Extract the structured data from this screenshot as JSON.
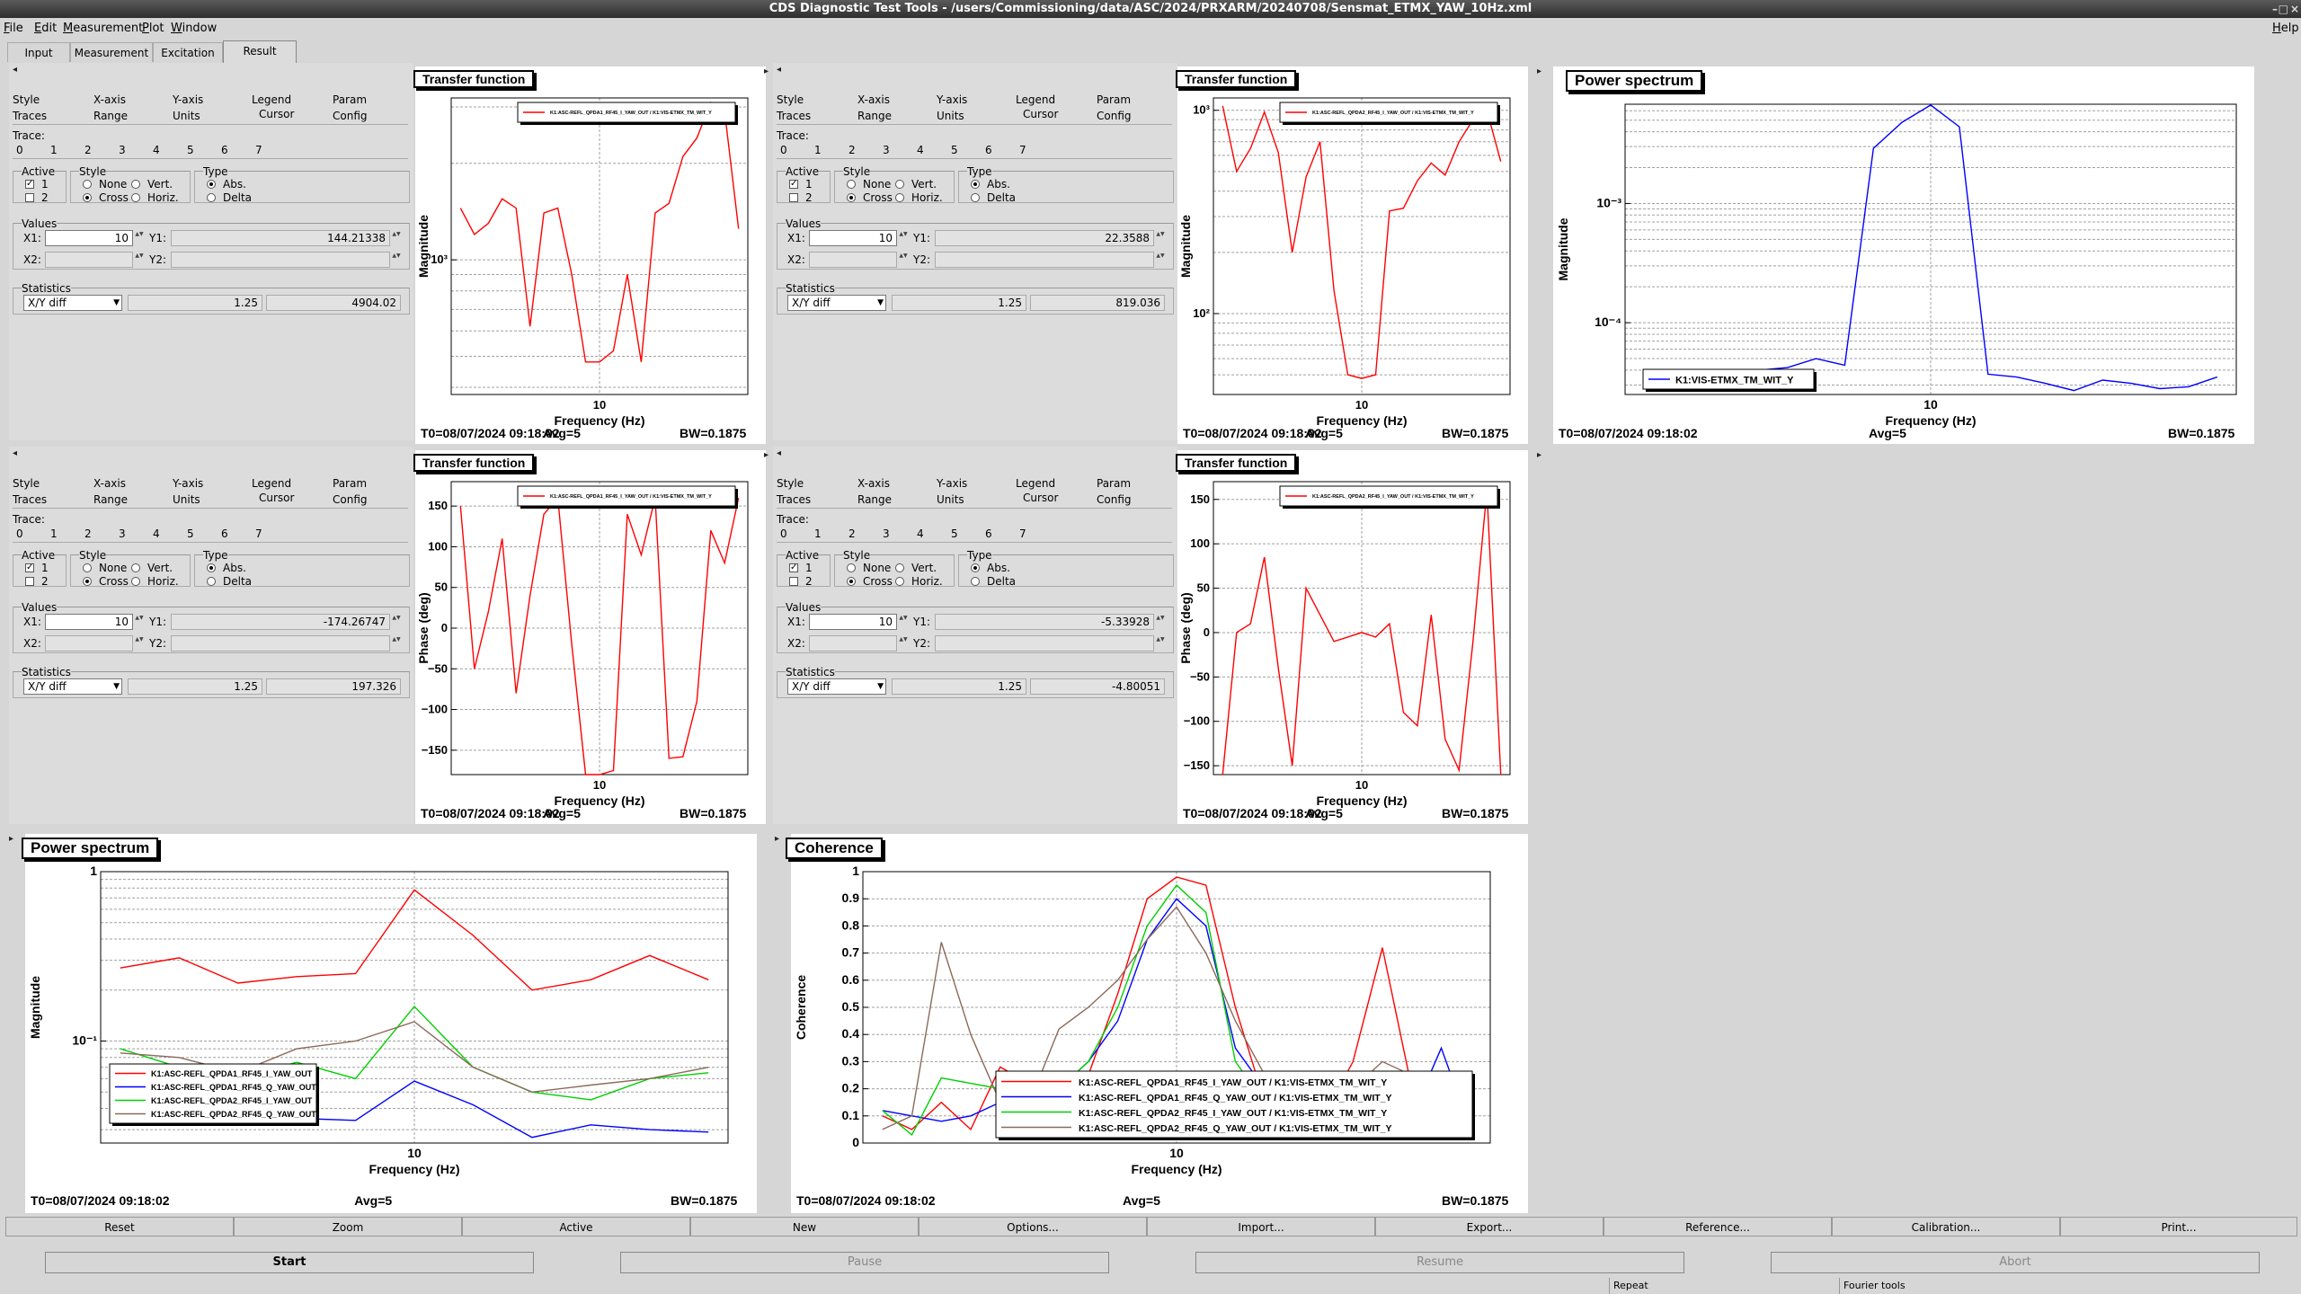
{
  "window": {
    "title": "CDS Diagnostic Test Tools - /users/Commissioning/data/ASC/2024/PRXARM/20240708/Sensmat_ETMX_YAW_10Hz.xml"
  },
  "menu": [
    "File",
    "Edit",
    "Measurement",
    "Plot",
    "Window",
    "Help"
  ],
  "tabs": [
    "Input",
    "Measurement",
    "Excitation",
    "Result"
  ],
  "panel_tabs": [
    "Style",
    "X-axis",
    "Y-axis",
    "Legend",
    "Param",
    "Traces",
    "Range",
    "Units",
    "Cursor",
    "Config"
  ],
  "cursor_ui": {
    "trace_label": "Trace:",
    "trace_nums": [
      "0",
      "1",
      "2",
      "3",
      "4",
      "5",
      "6",
      "7"
    ],
    "active_label": "Active",
    "style_label": "Style",
    "type_label": "Type",
    "active_1": "1",
    "active_2": "2",
    "none": "None",
    "cross": "Cross",
    "vert": "Vert.",
    "horiz": "Horiz.",
    "abs": "Abs.",
    "delta": "Delta",
    "values_label": "Values",
    "x1": "X1:",
    "x2": "X2:",
    "y1": "Y1:",
    "y2": "Y2:",
    "stats_label": "Statistics",
    "stats_mode": "X/Y diff"
  },
  "cursor_panels": [
    {
      "x1": "10",
      "y1": "144.21338",
      "stat_a": "1.25",
      "stat_b": "4904.02"
    },
    {
      "x1": "10",
      "y1": "22.3588",
      "stat_a": "1.25",
      "stat_b": "819.036"
    },
    {
      "x1": "10",
      "y1": "-174.26747",
      "stat_a": "1.25",
      "stat_b": "197.326"
    },
    {
      "x1": "10",
      "y1": "-5.33928",
      "stat_a": "1.25",
      "stat_b": "-4.80051"
    }
  ],
  "colors": {
    "red": "#ff0000",
    "blue": "#0000ff",
    "green": "#00d000",
    "brown": "#8a6a5a",
    "grid": "#a0a0a0"
  },
  "plots": [
    {
      "title": "Transfer function",
      "ylabel": "Magnitude",
      "xlabel": "Frequency (Hz)",
      "t0": "T0=08/07/2024 09:18:02",
      "avg": "Avg=5",
      "bw": "BW=0.1875",
      "legend": [
        "K1:ASC-REFL_QPDA1_RF45_I_YAW_OUT / K1:VIS-ETMX_TM_WIT_Y"
      ],
      "yticks": [
        "10³"
      ],
      "xtick": "10"
    },
    {
      "title": "Transfer function",
      "ylabel": "Magnitude",
      "xlabel": "Frequency (Hz)",
      "t0": "T0=08/07/2024 09:18:02",
      "avg": "Avg=5",
      "bw": "BW=0.1875",
      "legend": [
        "K1:ASC-REFL_QPDA2_RF45_I_YAW_OUT / K1:VIS-ETMX_TM_WIT_Y"
      ],
      "yticks": [
        "10³",
        "10²"
      ],
      "xtick": "10"
    },
    {
      "title": "Power spectrum",
      "ylabel": "Magnitude",
      "xlabel": "Frequency (Hz)",
      "t0": "T0=08/07/2024 09:18:02",
      "avg": "Avg=5",
      "bw": "BW=0.1875",
      "legend": [
        "K1:VIS-ETMX_TM_WIT_Y"
      ],
      "yticks": [
        "10⁻³",
        "10⁻⁴"
      ],
      "xtick": "10"
    },
    {
      "title": "Transfer function",
      "ylabel": "Phase (deg)",
      "xlabel": "Frequency (Hz)",
      "t0": "T0=08/07/2024 09:18:02",
      "avg": "Avg=5",
      "bw": "BW=0.1875",
      "legend": [
        "K1:ASC-REFL_QPDA1_RF45_I_YAW_OUT / K1:VIS-ETMX_TM_WIT_Y"
      ],
      "yticks": [
        "150",
        "100",
        "50",
        "0",
        "−50",
        "−100",
        "−150"
      ],
      "xtick": "10"
    },
    {
      "title": "Transfer function",
      "ylabel": "Phase (deg)",
      "xlabel": "Frequency (Hz)",
      "t0": "T0=08/07/2024 09:18:02",
      "avg": "Avg=5",
      "bw": "BW=0.1875",
      "legend": [
        "K1:ASC-REFL_QPDA2_RF45_I_YAW_OUT / K1:VIS-ETMX_TM_WIT_Y"
      ],
      "yticks": [
        "150",
        "100",
        "50",
        "0",
        "−50",
        "−100",
        "−150"
      ],
      "xtick": "10"
    },
    {
      "title": "Power spectrum",
      "ylabel": "Magnitude",
      "xlabel": "Frequency (Hz)",
      "t0": "T0=08/07/2024 09:18:02",
      "avg": "Avg=5",
      "bw": "BW=0.1875",
      "legend": [
        "K1:ASC-REFL_QPDA1_RF45_I_YAW_OUT",
        "K1:ASC-REFL_QPDA1_RF45_Q_YAW_OUT",
        "K1:ASC-REFL_QPDA2_RF45_I_YAW_OUT",
        "K1:ASC-REFL_QPDA2_RF45_Q_YAW_OUT"
      ],
      "yticks": [
        "1",
        "10⁻¹"
      ],
      "xtick": "10"
    },
    {
      "title": "Coherence",
      "ylabel": "Coherence",
      "xlabel": "Frequency (Hz)",
      "t0": "T0=08/07/2024 09:18:02",
      "avg": "Avg=5",
      "bw": "BW=0.1875",
      "legend": [
        "K1:ASC-REFL_QPDA1_RF45_I_YAW_OUT / K1:VIS-ETMX_TM_WIT_Y",
        "K1:ASC-REFL_QPDA1_RF45_Q_YAW_OUT / K1:VIS-ETMX_TM_WIT_Y",
        "K1:ASC-REFL_QPDA2_RF45_I_YAW_OUT / K1:VIS-ETMX_TM_WIT_Y",
        "K1:ASC-REFL_QPDA2_RF45_Q_YAW_OUT / K1:VIS-ETMX_TM_WIT_Y"
      ],
      "yticks": [
        "1",
        "0.9",
        "0.8",
        "0.7",
        "0.6",
        "0.5",
        "0.4",
        "0.3",
        "0.2",
        "0.1",
        "0"
      ],
      "xtick": "10"
    }
  ],
  "chart_data": [
    {
      "type": "line",
      "title": "Transfer function",
      "xlabel": "Frequency (Hz)",
      "ylabel": "Magnitude",
      "yscale": "log",
      "series": [
        {
          "name": "K1:ASC-REFL_QPDA1_RF45_I_YAW_OUT / K1:VIS-ETMX_TM_WIT_Y",
          "color": "#ff0000",
          "x": [
            8.125,
            8.3125,
            8.5,
            8.6875,
            8.875,
            9.0625,
            9.25,
            9.4375,
            9.625,
            9.8125,
            10,
            10.1875,
            10.375,
            10.5625,
            10.75,
            10.9375,
            11.125,
            11.3125,
            11.5,
            11.6875,
            11.875
          ],
          "y": [
            1450,
            1200,
            1300,
            1550,
            1450,
            620,
            1400,
            1450,
            900,
            480,
            480,
            520,
            900,
            480,
            1400,
            1500,
            2100,
            2400,
            3100,
            2900,
            1250
          ]
        }
      ]
    },
    {
      "type": "line",
      "title": "Transfer function",
      "xlabel": "Frequency (Hz)",
      "ylabel": "Magnitude",
      "yscale": "log",
      "series": [
        {
          "name": "K1:ASC-REFL_QPDA2_RF45_I_YAW_OUT / K1:VIS-ETMX_TM_WIT_Y",
          "color": "#ff0000",
          "x": [
            8.125,
            8.3125,
            8.5,
            8.6875,
            8.875,
            9.0625,
            9.25,
            9.4375,
            9.625,
            9.8125,
            10,
            10.1875,
            10.375,
            10.5625,
            10.75,
            10.9375,
            11.125,
            11.3125,
            11.5,
            11.6875,
            11.875
          ],
          "y": [
            1050,
            500,
            650,
            980,
            620,
            200,
            470,
            700,
            130,
            50,
            48,
            50,
            320,
            330,
            450,
            550,
            480,
            700,
            900,
            1000,
            560
          ]
        }
      ]
    },
    {
      "type": "line",
      "title": "Power spectrum",
      "xlabel": "Frequency (Hz)",
      "ylabel": "Magnitude",
      "yscale": "log",
      "series": [
        {
          "name": "K1:VIS-ETMX_TM_WIT_Y",
          "color": "#0000ff",
          "x": [
            8.125,
            8.3125,
            8.5,
            8.6875,
            8.875,
            9.0625,
            9.25,
            9.4375,
            9.625,
            9.8125,
            10,
            10.1875,
            10.375,
            10.5625,
            10.75,
            10.9375,
            11.125,
            11.3125,
            11.5,
            11.6875,
            11.875
          ],
          "y": [
            3.5e-05,
            3.6e-05,
            3.8e-05,
            3.9e-05,
            4e-05,
            4.2e-05,
            5e-05,
            4.4e-05,
            0.0029,
            0.0048,
            0.0067,
            0.0044,
            3.7e-05,
            3.5e-05,
            3.1e-05,
            2.7e-05,
            3.3e-05,
            3.1e-05,
            2.8e-05,
            2.9e-05,
            3.5e-05
          ]
        }
      ]
    },
    {
      "type": "line",
      "title": "Transfer function",
      "xlabel": "Frequency (Hz)",
      "ylabel": "Phase (deg)",
      "series": [
        {
          "name": "K1:ASC-REFL_QPDA1_RF45_I_YAW_OUT / K1:VIS-ETMX_TM_WIT_Y",
          "color": "#ff0000",
          "x": [
            8.125,
            8.3125,
            8.5,
            8.6875,
            8.875,
            9.0625,
            9.25,
            9.4375,
            9.625,
            9.8125,
            10,
            10.1875,
            10.375,
            10.5625,
            10.75,
            10.9375,
            11.125,
            11.3125,
            11.5,
            11.6875,
            11.875
          ],
          "y": [
            150,
            -50,
            20,
            110,
            -80,
            40,
            140,
            160,
            -20,
            -180,
            -180,
            -175,
            140,
            90,
            160,
            -160,
            -158,
            -90,
            120,
            80,
            160
          ]
        }
      ]
    },
    {
      "type": "line",
      "title": "Transfer function",
      "xlabel": "Frequency (Hz)",
      "ylabel": "Phase (deg)",
      "series": [
        {
          "name": "K1:ASC-REFL_QPDA2_RF45_I_YAW_OUT / K1:VIS-ETMX_TM_WIT_Y",
          "color": "#ff0000",
          "x": [
            8.125,
            8.3125,
            8.5,
            8.6875,
            8.875,
            9.0625,
            9.25,
            9.4375,
            9.625,
            9.8125,
            10,
            10.1875,
            10.375,
            10.5625,
            10.75,
            10.9375,
            11.125,
            11.3125,
            11.5,
            11.6875,
            11.875
          ],
          "y": [
            -160,
            0,
            10,
            85,
            -40,
            -150,
            50,
            20,
            -10,
            -5,
            0,
            -5,
            10,
            -90,
            -105,
            20,
            -120,
            -155,
            -10,
            160,
            -160
          ]
        }
      ]
    },
    {
      "type": "line",
      "title": "Power spectrum",
      "xlabel": "Frequency (Hz)",
      "ylabel": "Magnitude",
      "yscale": "log",
      "series": [
        {
          "name": "K1:ASC-REFL_QPDA1_RF45_I_YAW_OUT",
          "color": "#ff0000",
          "x": [
            8.125,
            8.5,
            8.875,
            9.25,
            9.625,
            10,
            10.375,
            10.75,
            11.125,
            11.5,
            11.875
          ],
          "y": [
            0.27,
            0.31,
            0.22,
            0.24,
            0.25,
            0.78,
            0.42,
            0.2,
            0.23,
            0.32,
            0.23
          ]
        },
        {
          "name": "K1:ASC-REFL_QPDA1_RF45_Q_YAW_OUT",
          "color": "#0000ff",
          "x": [
            8.125,
            8.5,
            8.875,
            9.25,
            9.625,
            10,
            10.375,
            10.75,
            11.125,
            11.5,
            11.875
          ],
          "y": [
            0.041,
            0.039,
            0.032,
            0.035,
            0.034,
            0.058,
            0.042,
            0.027,
            0.032,
            0.03,
            0.029
          ]
        },
        {
          "name": "K1:ASC-REFL_QPDA2_RF45_I_YAW_OUT",
          "color": "#00d000",
          "x": [
            8.125,
            8.5,
            8.875,
            9.25,
            9.625,
            10,
            10.375,
            10.75,
            11.125,
            11.5,
            11.875
          ],
          "y": [
            0.09,
            0.07,
            0.06,
            0.075,
            0.06,
            0.16,
            0.07,
            0.05,
            0.045,
            0.06,
            0.065
          ]
        },
        {
          "name": "K1:ASC-REFL_QPDA2_RF45_Q_YAW_OUT",
          "color": "#8a6a5a",
          "x": [
            8.125,
            8.5,
            8.875,
            9.25,
            9.625,
            10,
            10.375,
            10.75,
            11.125,
            11.5,
            11.875
          ],
          "y": [
            0.085,
            0.08,
            0.065,
            0.09,
            0.1,
            0.13,
            0.07,
            0.05,
            0.055,
            0.06,
            0.07
          ]
        }
      ]
    },
    {
      "type": "line",
      "title": "Coherence",
      "xlabel": "Frequency (Hz)",
      "ylabel": "Coherence",
      "ylim": [
        0,
        1
      ],
      "series": [
        {
          "name": "K1:ASC-REFL_QPDA1_RF45_I_YAW_OUT / K1:VIS-ETMX_TM_WIT_Y",
          "color": "#ff0000",
          "x": [
            8.125,
            8.3125,
            8.5,
            8.6875,
            8.875,
            9.0625,
            9.25,
            9.4375,
            9.625,
            9.8125,
            10,
            10.1875,
            10.375,
            10.5625,
            10.75,
            10.9375,
            11.125,
            11.3125,
            11.5,
            11.6875,
            11.875
          ],
          "y": [
            0.1,
            0.05,
            0.15,
            0.05,
            0.28,
            0.22,
            0.1,
            0.25,
            0.55,
            0.9,
            0.98,
            0.95,
            0.5,
            0.15,
            0.05,
            0.1,
            0.3,
            0.72,
            0.2,
            0.05,
            0.1
          ]
        },
        {
          "name": "K1:ASC-REFL_QPDA1_RF45_Q_YAW_OUT / K1:VIS-ETMX_TM_WIT_Y",
          "color": "#0000ff",
          "x": [
            8.125,
            8.3125,
            8.5,
            8.6875,
            8.875,
            9.0625,
            9.25,
            9.4375,
            9.625,
            9.8125,
            10,
            10.1875,
            10.375,
            10.5625,
            10.75,
            10.9375,
            11.125,
            11.3125,
            11.5,
            11.6875,
            11.875
          ],
          "y": [
            0.12,
            0.1,
            0.08,
            0.1,
            0.15,
            0.25,
            0.2,
            0.3,
            0.45,
            0.75,
            0.9,
            0.8,
            0.35,
            0.2,
            0.1,
            0.1,
            0.15,
            0.2,
            0.1,
            0.35,
            0.05
          ]
        },
        {
          "name": "K1:ASC-REFL_QPDA2_RF45_I_YAW_OUT / K1:VIS-ETMX_TM_WIT_Y",
          "color": "#00d000",
          "x": [
            8.125,
            8.3125,
            8.5,
            8.6875,
            8.875,
            9.0625,
            9.25,
            9.4375,
            9.625,
            9.8125,
            10,
            10.1875,
            10.375,
            10.5625,
            10.75,
            10.9375,
            11.125,
            11.3125,
            11.5,
            11.6875,
            11.875
          ],
          "y": [
            0.12,
            0.03,
            0.24,
            0.22,
            0.2,
            0.25,
            0.2,
            0.3,
            0.5,
            0.8,
            0.95,
            0.85,
            0.3,
            0.15,
            0.1,
            0.1,
            0.2,
            0.25,
            0.15,
            0.2,
            0.1
          ]
        },
        {
          "name": "K1:ASC-REFL_QPDA2_RF45_Q_YAW_OUT / K1:VIS-ETMX_TM_WIT_Y",
          "color": "#8a6a5a",
          "x": [
            8.125,
            8.3125,
            8.5,
            8.6875,
            8.875,
            9.0625,
            9.25,
            9.4375,
            9.625,
            9.8125,
            10,
            10.1875,
            10.375,
            10.5625,
            10.75,
            10.9375,
            11.125,
            11.3125,
            11.5,
            11.6875,
            11.875
          ],
          "y": [
            0.05,
            0.1,
            0.74,
            0.4,
            0.15,
            0.15,
            0.42,
            0.5,
            0.6,
            0.75,
            0.87,
            0.7,
            0.45,
            0.25,
            0.2,
            0.15,
            0.2,
            0.3,
            0.25,
            0.2,
            0.15
          ]
        }
      ]
    }
  ],
  "buttons": [
    "Reset",
    "Zoom",
    "Active",
    "New",
    "Options...",
    "Import...",
    "Export...",
    "Reference...",
    "Calibration...",
    "Print..."
  ],
  "main_buttons": [
    "Start",
    "Pause",
    "Resume",
    "Abort"
  ],
  "status": [
    "Repeat",
    "Fourier tools"
  ]
}
